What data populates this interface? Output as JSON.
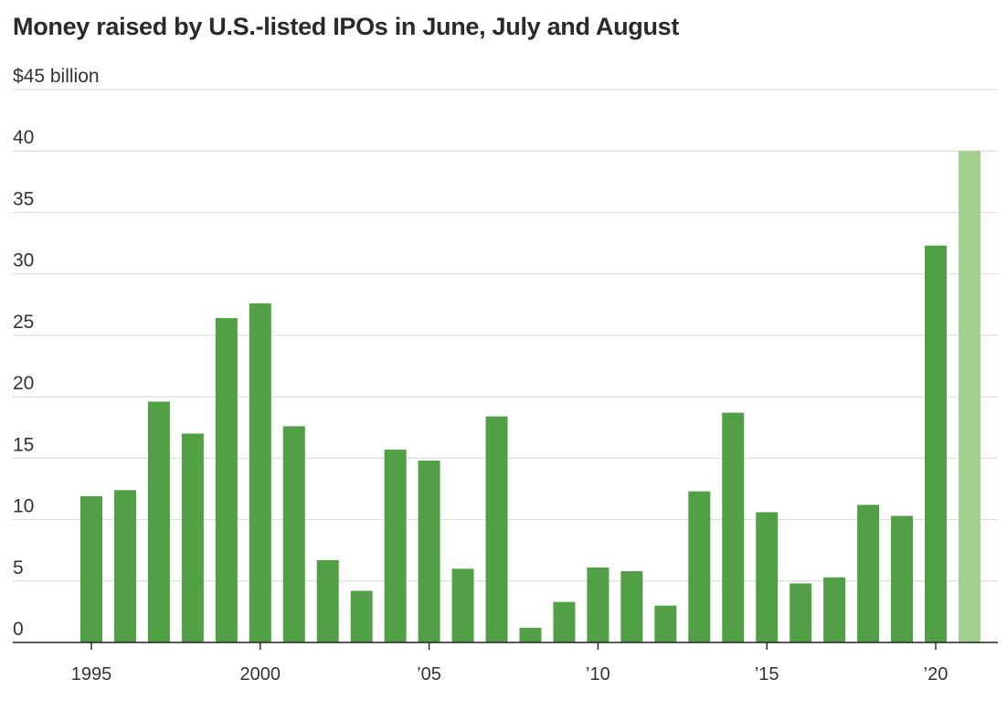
{
  "chart_data": {
    "type": "bar",
    "title": "Money raised by U.S.-listed IPOs in June, July and August",
    "ylabel": "",
    "xlabel": "",
    "y_unit_label": "$45 billion",
    "ylim": [
      0,
      45
    ],
    "yticks": [
      0,
      5,
      10,
      15,
      20,
      25,
      30,
      35,
      40,
      45
    ],
    "ytick_labels": [
      "0",
      "5",
      "10",
      "15",
      "20",
      "25",
      "30",
      "35",
      "40",
      "$45 billion"
    ],
    "grid": true,
    "x": [
      1995,
      1996,
      1997,
      1998,
      1999,
      2000,
      2001,
      2002,
      2003,
      2004,
      2005,
      2006,
      2007,
      2008,
      2009,
      2010,
      2011,
      2012,
      2013,
      2014,
      2015,
      2016,
      2017,
      2018,
      2019,
      2020,
      2021
    ],
    "values": [
      11.9,
      12.4,
      19.6,
      17.0,
      26.4,
      27.6,
      17.6,
      6.7,
      4.2,
      15.7,
      14.8,
      6.0,
      18.4,
      1.2,
      3.3,
      6.1,
      5.8,
      3.0,
      12.3,
      18.7,
      10.6,
      4.8,
      5.3,
      11.2,
      10.3,
      32.3,
      40.0
    ],
    "xtick_values": [
      1995,
      2000,
      2005,
      2010,
      2015,
      2020
    ],
    "xtick_labels": [
      "1995",
      "2000",
      "’05",
      "’10",
      "’15",
      "’20"
    ],
    "colors": {
      "bar": "#52a046",
      "bar_highlight": "#a3d08e",
      "axis": "#222222",
      "grid": "#dddddd"
    },
    "highlight_index": 26
  }
}
